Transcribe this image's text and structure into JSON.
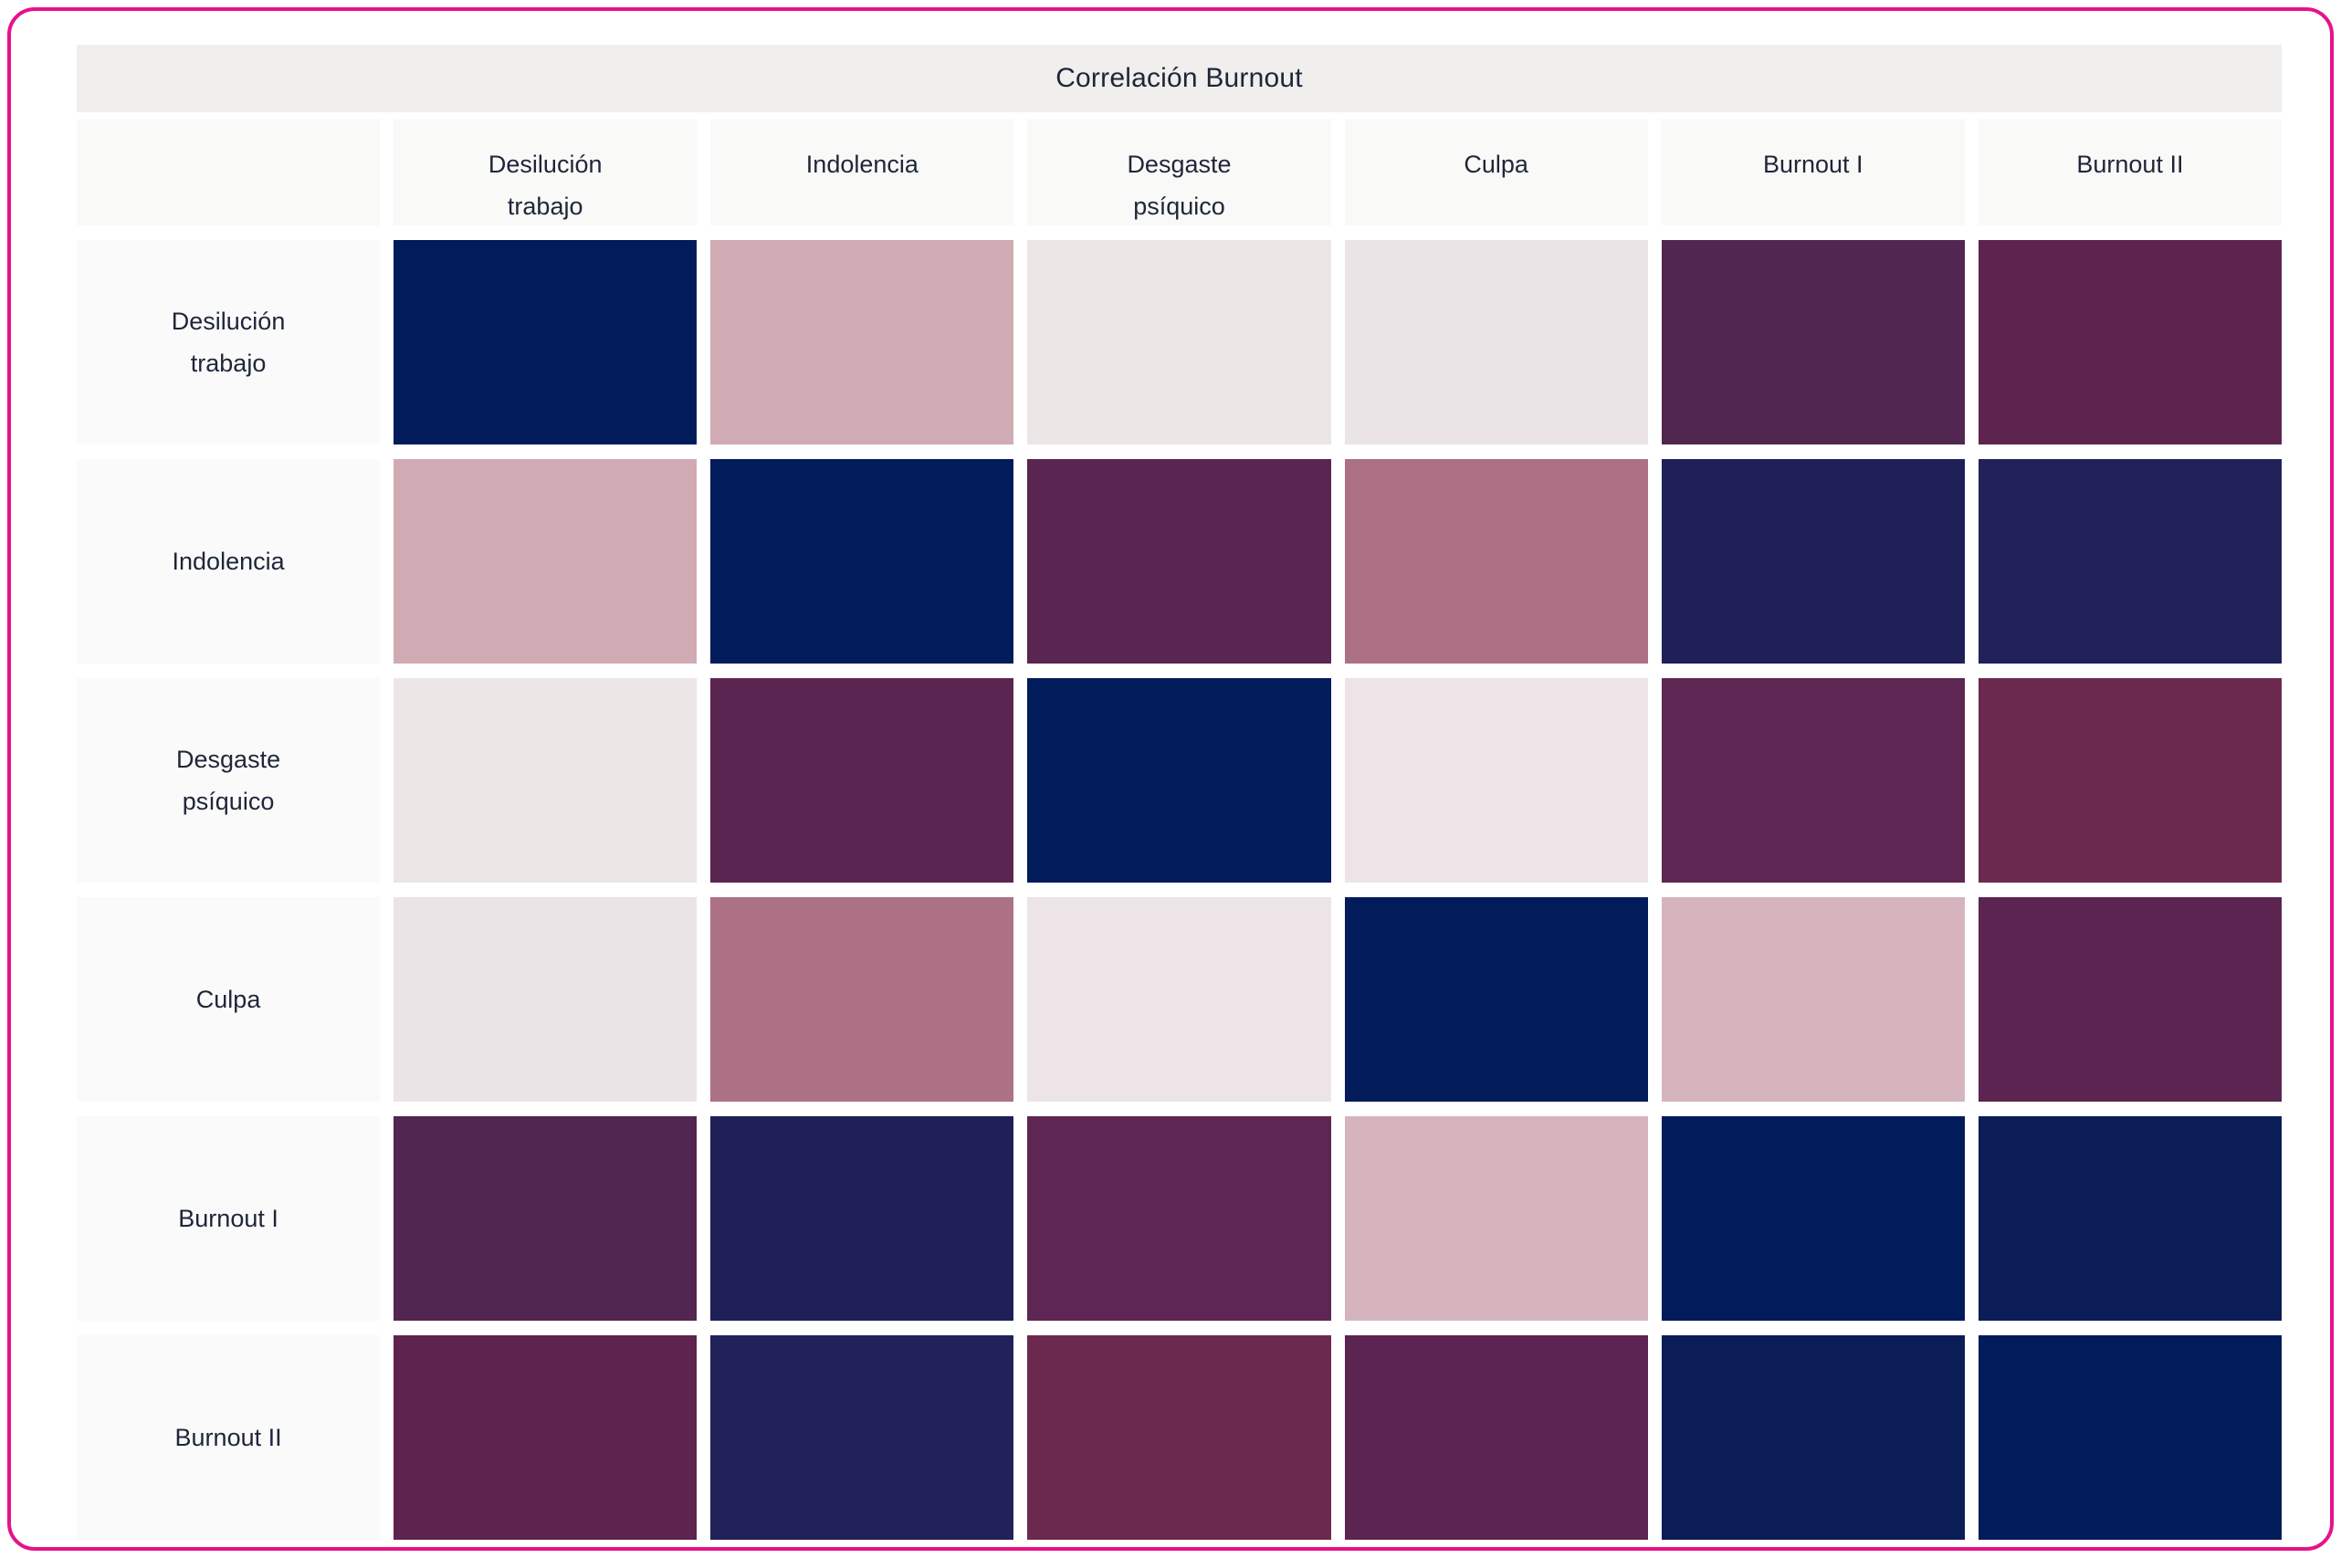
{
  "frame": {
    "border_color": "#E6128B",
    "background": "#FFFFFF"
  },
  "chart_data": {
    "type": "heatmap",
    "title": "Correlación Burnout",
    "categories": [
      "Desilución trabajo",
      "Indolencia",
      "Desgaste psíquico",
      "Culpa",
      "Burnout I",
      "Burnout II"
    ],
    "x_axis_labels": [
      "Desilución trabajo",
      "Indolencia",
      "Desgaste psíquico",
      "Culpa",
      "Burnout I",
      "Burnout II"
    ],
    "y_axis_labels": [
      "Desilución trabajo",
      "Indolencia",
      "Desgaste psíquico",
      "Culpa",
      "Burnout I",
      "Burnout II"
    ],
    "values_shown_in_cells": false,
    "legend": "none",
    "grid": "white gaps between cells",
    "cell_colors": [
      [
        "#021B5B",
        "#D1ABB4",
        "#ECE5E6",
        "#EBE4E6",
        "#512651",
        "#5D2450"
      ],
      [
        "#D1ABB4",
        "#021B5B",
        "#5B2551",
        "#AC7185",
        "#1F2057",
        "#212259"
      ],
      [
        "#ECE5E6",
        "#5B2551",
        "#021B5B",
        "#ECE4E6",
        "#5E2652",
        "#6C2950"
      ],
      [
        "#EBE4E6",
        "#AC7185",
        "#ECE4E6",
        "#021B5B",
        "#D5B4BE",
        "#5C2451"
      ],
      [
        "#512651",
        "#1F2057",
        "#5E2652",
        "#D5B4BE",
        "#021B5B",
        "#0B1D56"
      ],
      [
        "#5D2450",
        "#212259",
        "#6C2950",
        "#5C2451",
        "#0B1D56",
        "#021B5B"
      ]
    ],
    "diagonal_color": "#021B5B"
  },
  "styles": {
    "title_bg": "#F0EFED",
    "header_bg": "#F9F9F8",
    "label_bg": "#FAFAFA",
    "text_color": "#1E2638",
    "gap_color": "#FFFFFF"
  }
}
